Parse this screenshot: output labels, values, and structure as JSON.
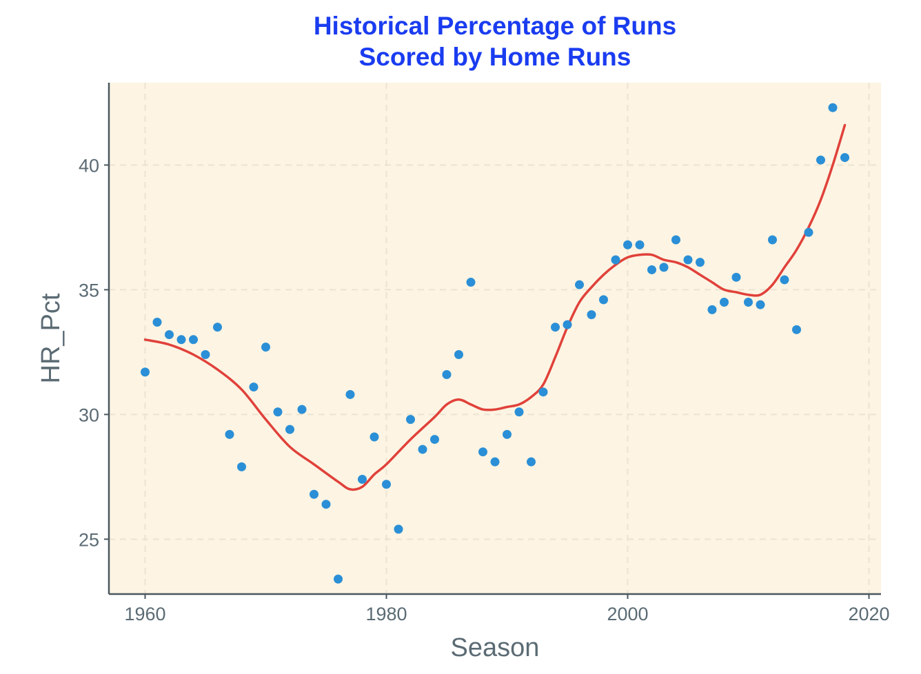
{
  "colors": {
    "title": "#1a3cf0",
    "panel_bg": "#fdf4e3",
    "grid": "#ece3d2",
    "axis_line": "#4a575e",
    "axis_text": "#5b6b74",
    "point": "#2a8fd6",
    "smooth_line": "#e0413a"
  },
  "chart_data": {
    "type": "scatter",
    "title_lines": [
      "Historical Percentage of Runs",
      "Scored by Home Runs"
    ],
    "xlabel": "Season",
    "ylabel": "HR_Pct",
    "xlim": [
      1957,
      2021
    ],
    "ylim": [
      22.8,
      43.3
    ],
    "x_ticks": [
      1960,
      1980,
      2000,
      2020
    ],
    "x_tick_labels": [
      "1960",
      "1980",
      "2000",
      "2020"
    ],
    "y_ticks": [
      25,
      30,
      35,
      40
    ],
    "y_tick_labels": [
      "25",
      "30",
      "35",
      "40"
    ],
    "grid": true,
    "legend": "none",
    "series": [
      {
        "type": "points",
        "x": [
          1960,
          1961,
          1962,
          1963,
          1964,
          1965,
          1966,
          1967,
          1968,
          1969,
          1970,
          1971,
          1972,
          1973,
          1974,
          1975,
          1976,
          1977,
          1978,
          1979,
          1980,
          1981,
          1982,
          1983,
          1984,
          1985,
          1986,
          1987,
          1988,
          1989,
          1990,
          1991,
          1992,
          1993,
          1994,
          1995,
          1996,
          1997,
          1998,
          1999,
          2000,
          2001,
          2002,
          2003,
          2004,
          2005,
          2006,
          2007,
          2008,
          2009,
          2010,
          2011,
          2012,
          2013,
          2014,
          2015,
          2016,
          2017,
          2018
        ],
        "y": [
          31.7,
          33.7,
          33.2,
          33.0,
          33.0,
          32.4,
          33.5,
          29.2,
          27.9,
          31.1,
          32.7,
          30.1,
          29.4,
          30.2,
          26.8,
          26.4,
          23.4,
          30.8,
          27.4,
          29.1,
          27.2,
          25.4,
          29.8,
          28.6,
          29.0,
          31.6,
          32.4,
          35.3,
          28.5,
          28.1,
          29.2,
          30.1,
          28.1,
          30.9,
          33.5,
          33.6,
          35.2,
          34.0,
          34.6,
          36.2,
          36.8,
          36.8,
          35.8,
          35.9,
          37.0,
          36.2,
          36.1,
          34.2,
          34.5,
          35.5,
          34.5,
          34.4,
          37.0,
          35.4,
          33.4,
          37.3,
          40.2,
          42.3,
          40.3
        ]
      },
      {
        "type": "smooth",
        "x": [
          1960,
          1962,
          1964,
          1966,
          1968,
          1970,
          1972,
          1974,
          1976,
          1977,
          1978,
          1979,
          1980,
          1982,
          1984,
          1985,
          1986,
          1987,
          1988,
          1989,
          1990,
          1991,
          1992,
          1993,
          1994,
          1995,
          1996,
          1997,
          1998,
          1999,
          2000,
          2001,
          2002,
          2003,
          2004,
          2005,
          2006,
          2007,
          2008,
          2009,
          2010,
          2011,
          2012,
          2013,
          2014,
          2015,
          2016,
          2017,
          2018
        ],
        "y": [
          33.0,
          32.8,
          32.4,
          31.8,
          31.0,
          29.8,
          28.7,
          28.0,
          27.3,
          27.0,
          27.1,
          27.6,
          28.0,
          29.0,
          29.9,
          30.4,
          30.6,
          30.4,
          30.2,
          30.2,
          30.3,
          30.4,
          30.7,
          31.2,
          32.3,
          33.5,
          34.5,
          35.1,
          35.6,
          36.0,
          36.3,
          36.4,
          36.4,
          36.2,
          36.1,
          35.9,
          35.6,
          35.3,
          35.0,
          34.9,
          34.8,
          34.8,
          35.2,
          35.9,
          36.6,
          37.5,
          38.6,
          40.0,
          41.6
        ]
      }
    ]
  }
}
